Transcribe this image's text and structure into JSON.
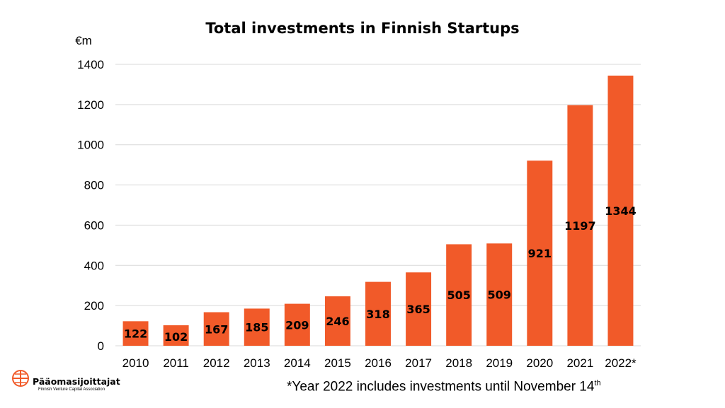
{
  "chart_data": {
    "type": "bar",
    "title": "Total investments in Finnish Startups",
    "ylabel": "€m",
    "xlabel": "",
    "categories": [
      "2010",
      "2011",
      "2012",
      "2013",
      "2014",
      "2015",
      "2016",
      "2017",
      "2018",
      "2019",
      "2020",
      "2021",
      "2022*"
    ],
    "values": [
      122,
      102,
      167,
      185,
      209,
      246,
      318,
      365,
      505,
      509,
      921,
      1197,
      1344
    ],
    "ylim": [
      0,
      1400
    ],
    "yticks": [
      0,
      200,
      400,
      600,
      800,
      1000,
      1200,
      1400
    ],
    "grid": true,
    "bar_color": "#f15a29",
    "grid_color": "#d9d9d9"
  },
  "footnote": {
    "text": "*Year 2022 includes investments until November 14",
    "superscript": "th"
  },
  "logo": {
    "name": "Pääomasijoittajat",
    "subtitle": "Finnish Venture Capital Association",
    "icon": "globe-grid-icon",
    "color": "#f15a29"
  }
}
